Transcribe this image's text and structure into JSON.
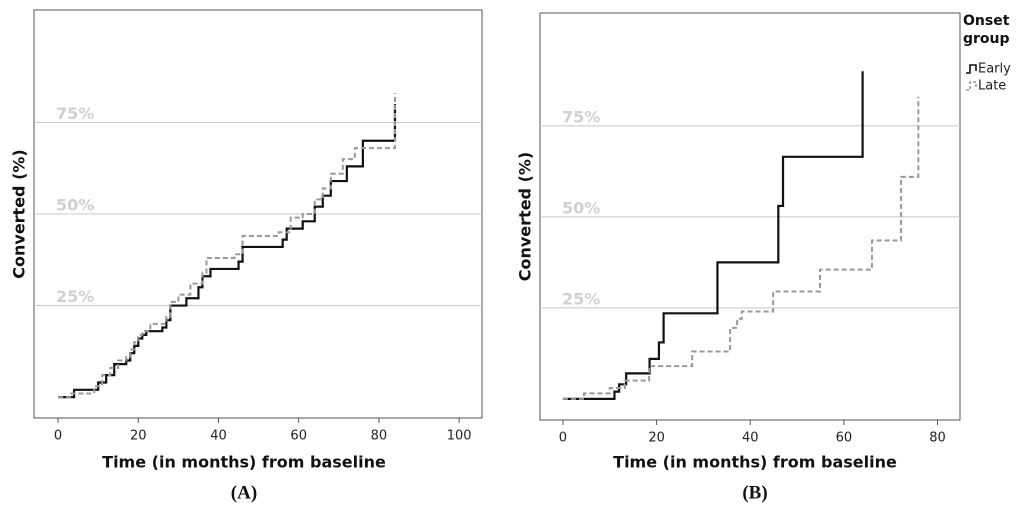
{
  "chart_data": [
    {
      "type": "step",
      "caption": "(A)",
      "x_label": "Time (in months) from baseline",
      "y_label": "Converted (%)",
      "xlim": [
        -6,
        105.7
      ],
      "xticks": [
        0,
        20,
        40,
        60,
        80,
        100
      ],
      "ylim": [
        -5.7,
        105.7
      ],
      "yticks": [
        {
          "value": 25,
          "label": "25%"
        },
        {
          "value": 50,
          "label": "50%"
        },
        {
          "value": 75,
          "label": "75%"
        }
      ],
      "grid": true,
      "series": [
        {
          "name": "Early",
          "color": "#111111",
          "x": [
            0,
            4,
            10,
            12,
            14,
            17,
            18,
            19,
            20,
            21,
            22,
            26,
            27,
            28,
            32,
            35,
            36,
            38,
            45,
            46,
            56,
            57,
            61,
            64,
            66,
            68,
            72,
            76,
            84
          ],
          "values": [
            0,
            2,
            4,
            6,
            9,
            10,
            12,
            14,
            16,
            17,
            18,
            19,
            21,
            25,
            27,
            30,
            33,
            35,
            37,
            41,
            43,
            46,
            48,
            52,
            55,
            59,
            63,
            70,
            80
          ]
        },
        {
          "name": "Late",
          "color": "#999999",
          "x": [
            0,
            3,
            9,
            11,
            13,
            15,
            17,
            18,
            19,
            20,
            21,
            23,
            27,
            28,
            30,
            33,
            36,
            37,
            44,
            46,
            55,
            58,
            61,
            64,
            66,
            68,
            71,
            74,
            84
          ],
          "values": [
            0,
            1,
            3,
            6,
            8,
            10,
            11,
            13,
            15,
            17,
            18,
            20,
            22,
            26,
            28,
            31,
            34,
            38,
            39,
            44,
            45,
            49,
            50,
            54,
            57,
            61,
            65,
            68,
            83
          ]
        }
      ]
    },
    {
      "type": "step",
      "caption": "(B)",
      "x_label": "Time (in months) from baseline",
      "y_label": "Converted (%)",
      "xlim": [
        -4.9,
        84.8
      ],
      "xticks": [
        0,
        20,
        40,
        60,
        80
      ],
      "ylim": [
        -5.8,
        106
      ],
      "yticks": [
        {
          "value": 25,
          "label": "25%"
        },
        {
          "value": 50,
          "label": "50%"
        },
        {
          "value": 75,
          "label": "75%"
        }
      ],
      "grid": true,
      "legend": "right",
      "legend_title": "Onset group",
      "series": [
        {
          "name": "Early",
          "color": "#111111",
          "x": [
            0,
            11,
            12,
            13.5,
            18.5,
            20.5,
            21.5,
            33,
            46,
            47,
            64
          ],
          "values": [
            0,
            2,
            4,
            7,
            11,
            15.5,
            23.5,
            37.5,
            53,
            66.5,
            90
          ]
        },
        {
          "name": "Late",
          "color": "#999999",
          "x": [
            0,
            4.5,
            10,
            13.2,
            18.4,
            27.6,
            35.7,
            37.2,
            38.2,
            44.9,
            54.9,
            66,
            72.2,
            75.9
          ],
          "values": [
            0,
            1.5,
            3,
            5,
            9,
            13,
            19.5,
            22,
            24,
            29.5,
            35.5,
            43.5,
            61,
            83
          ]
        }
      ]
    }
  ]
}
